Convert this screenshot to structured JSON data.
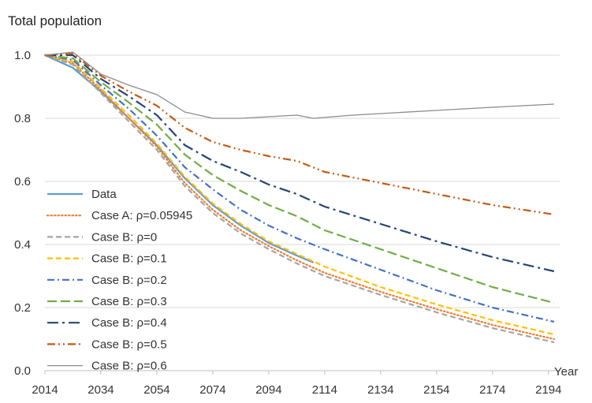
{
  "chart_data": {
    "type": "line",
    "title": "",
    "ylabel": "Total population",
    "xlabel": "Year",
    "xlim": [
      2014,
      2198
    ],
    "ylim": [
      0.0,
      1.0
    ],
    "x_ticks": [
      2014,
      2034,
      2054,
      2074,
      2094,
      2114,
      2134,
      2154,
      2174,
      2194
    ],
    "y_ticks": [
      0.0,
      0.2,
      0.4,
      0.6,
      0.8,
      1.0
    ],
    "y_tick_labels": [
      "0.0",
      "0.2",
      "0.4",
      "0.6",
      "0.8",
      "1.0"
    ],
    "grid": "horizontal",
    "legend_position": "bottom-left",
    "series": [
      {
        "name": "Data",
        "color": "#5b9bd5",
        "dash": "solid",
        "points": [
          [
            2014,
            1.0
          ],
          [
            2024,
            0.96
          ],
          [
            2034,
            0.885
          ],
          [
            2044,
            0.8
          ],
          [
            2054,
            0.715
          ],
          [
            2064,
            0.61
          ],
          [
            2074,
            0.525
          ],
          [
            2084,
            0.46
          ],
          [
            2094,
            0.405
          ],
          [
            2104,
            0.365
          ],
          [
            2110,
            0.343
          ]
        ]
      },
      {
        "name": "Case A: ρ=0.05945",
        "color": "#ed7d31",
        "dash": "dotted",
        "points": [
          [
            2014,
            1.0
          ],
          [
            2024,
            0.975
          ],
          [
            2034,
            0.89
          ],
          [
            2044,
            0.8
          ],
          [
            2054,
            0.71
          ],
          [
            2064,
            0.595
          ],
          [
            2074,
            0.51
          ],
          [
            2084,
            0.445
          ],
          [
            2094,
            0.395
          ],
          [
            2104,
            0.35
          ],
          [
            2114,
            0.31
          ],
          [
            2134,
            0.25
          ],
          [
            2154,
            0.195
          ],
          [
            2174,
            0.145
          ],
          [
            2196,
            0.1
          ]
        ]
      },
      {
        "name": "Case B: ρ=0",
        "color": "#a5a5a5",
        "dash": "dashed",
        "points": [
          [
            2014,
            1.0
          ],
          [
            2024,
            0.97
          ],
          [
            2034,
            0.88
          ],
          [
            2044,
            0.79
          ],
          [
            2054,
            0.7
          ],
          [
            2064,
            0.585
          ],
          [
            2074,
            0.5
          ],
          [
            2084,
            0.435
          ],
          [
            2094,
            0.385
          ],
          [
            2104,
            0.34
          ],
          [
            2114,
            0.3
          ],
          [
            2134,
            0.24
          ],
          [
            2154,
            0.185
          ],
          [
            2174,
            0.135
          ],
          [
            2196,
            0.09
          ]
        ]
      },
      {
        "name": "Case B: ρ=0.1",
        "color": "#ffc000",
        "dash": "dashed",
        "points": [
          [
            2014,
            1.0
          ],
          [
            2024,
            0.98
          ],
          [
            2034,
            0.895
          ],
          [
            2044,
            0.81
          ],
          [
            2054,
            0.72
          ],
          [
            2064,
            0.615
          ],
          [
            2074,
            0.53
          ],
          [
            2084,
            0.465
          ],
          [
            2094,
            0.41
          ],
          [
            2104,
            0.37
          ],
          [
            2114,
            0.33
          ],
          [
            2134,
            0.265
          ],
          [
            2154,
            0.21
          ],
          [
            2174,
            0.16
          ],
          [
            2196,
            0.115
          ]
        ]
      },
      {
        "name": "Case B: ρ=0.2",
        "color": "#4472c4",
        "dash": "dashdot",
        "points": [
          [
            2014,
            1.0
          ],
          [
            2024,
            0.985
          ],
          [
            2034,
            0.905
          ],
          [
            2044,
            0.83
          ],
          [
            2054,
            0.745
          ],
          [
            2064,
            0.645
          ],
          [
            2074,
            0.575
          ],
          [
            2084,
            0.51
          ],
          [
            2094,
            0.46
          ],
          [
            2104,
            0.42
          ],
          [
            2114,
            0.385
          ],
          [
            2134,
            0.32
          ],
          [
            2154,
            0.255
          ],
          [
            2174,
            0.2
          ],
          [
            2196,
            0.155
          ]
        ]
      },
      {
        "name": "Case B: ρ=0.3",
        "color": "#70ad47",
        "dash": "longdash",
        "points": [
          [
            2014,
            1.0
          ],
          [
            2024,
            0.99
          ],
          [
            2034,
            0.915
          ],
          [
            2044,
            0.85
          ],
          [
            2054,
            0.78
          ],
          [
            2064,
            0.685
          ],
          [
            2074,
            0.62
          ],
          [
            2084,
            0.57
          ],
          [
            2094,
            0.525
          ],
          [
            2104,
            0.49
          ],
          [
            2114,
            0.445
          ],
          [
            2134,
            0.385
          ],
          [
            2154,
            0.325
          ],
          [
            2174,
            0.265
          ],
          [
            2196,
            0.215
          ]
        ]
      },
      {
        "name": "Case B: ρ=0.4",
        "color": "#264478",
        "dash": "longdashdot",
        "points": [
          [
            2014,
            1.0
          ],
          [
            2024,
            1.0
          ],
          [
            2034,
            0.925
          ],
          [
            2044,
            0.87
          ],
          [
            2054,
            0.81
          ],
          [
            2064,
            0.715
          ],
          [
            2074,
            0.665
          ],
          [
            2084,
            0.63
          ],
          [
            2094,
            0.59
          ],
          [
            2104,
            0.56
          ],
          [
            2114,
            0.52
          ],
          [
            2134,
            0.465
          ],
          [
            2154,
            0.41
          ],
          [
            2174,
            0.36
          ],
          [
            2196,
            0.315
          ]
        ]
      },
      {
        "name": "Case B: ρ=0.5",
        "color": "#c55a11",
        "dash": "dashdotdot",
        "points": [
          [
            2014,
            1.0
          ],
          [
            2024,
            1.005
          ],
          [
            2034,
            0.935
          ],
          [
            2044,
            0.885
          ],
          [
            2054,
            0.84
          ],
          [
            2064,
            0.77
          ],
          [
            2074,
            0.725
          ],
          [
            2084,
            0.7
          ],
          [
            2094,
            0.68
          ],
          [
            2104,
            0.665
          ],
          [
            2114,
            0.63
          ],
          [
            2134,
            0.595
          ],
          [
            2154,
            0.56
          ],
          [
            2174,
            0.525
          ],
          [
            2196,
            0.495
          ]
        ]
      },
      {
        "name": "Case B: ρ=0.6",
        "color": "#8c8c8c",
        "dash": "solid-thin",
        "points": [
          [
            2014,
            1.0
          ],
          [
            2024,
            1.01
          ],
          [
            2034,
            0.94
          ],
          [
            2044,
            0.905
          ],
          [
            2054,
            0.875
          ],
          [
            2064,
            0.82
          ],
          [
            2074,
            0.8
          ],
          [
            2084,
            0.8
          ],
          [
            2094,
            0.805
          ],
          [
            2104,
            0.81
          ],
          [
            2110,
            0.8
          ],
          [
            2124,
            0.81
          ],
          [
            2134,
            0.815
          ],
          [
            2154,
            0.825
          ],
          [
            2174,
            0.835
          ],
          [
            2196,
            0.845
          ]
        ]
      }
    ]
  }
}
